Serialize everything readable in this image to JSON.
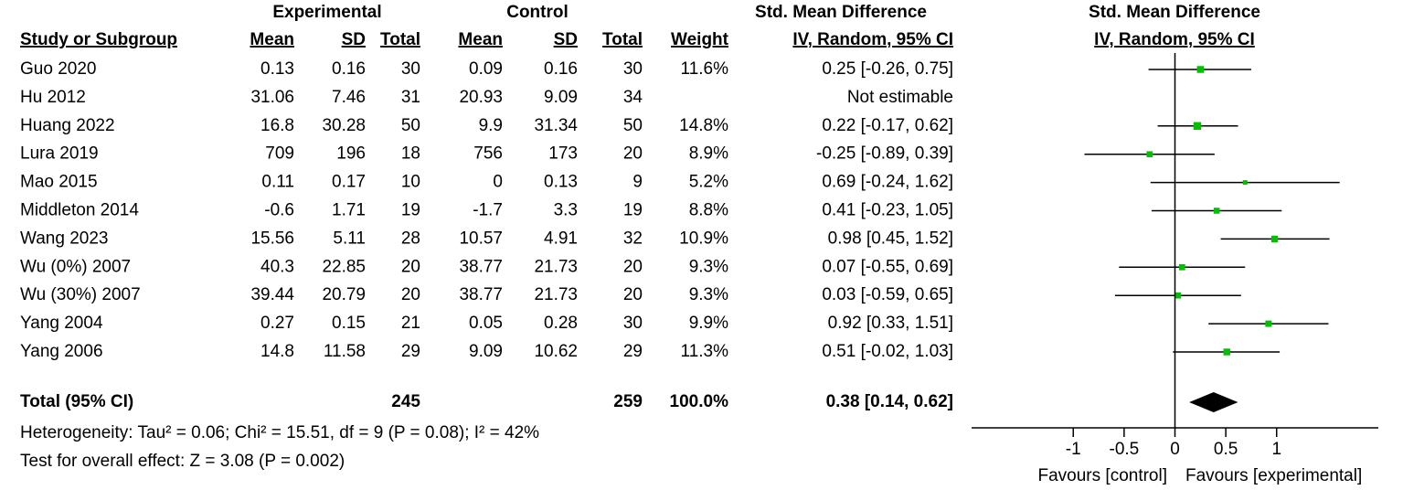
{
  "chart_data": {
    "type": "forest",
    "group_headers": {
      "experimental": "Experimental",
      "control": "Control",
      "table_effect": "Std. Mean Difference",
      "plot_effect": "Std. Mean Difference"
    },
    "columns": [
      "Study or Subgroup",
      "Mean",
      "SD",
      "Total",
      "Mean",
      "SD",
      "Total",
      "Weight",
      "IV, Random, 95% CI"
    ],
    "plot_header": "IV, Random, 95% CI",
    "marker_color": "#00c000",
    "studies": [
      {
        "name": "Guo 2020",
        "exp_mean": 0.13,
        "exp_sd": 0.16,
        "exp_total": 30,
        "ctl_mean": 0.09,
        "ctl_sd": 0.16,
        "ctl_total": 30,
        "weight": 11.6,
        "weight_label": "11.6%",
        "effect": 0.25,
        "lower": -0.26,
        "upper": 0.75,
        "ci_label": "0.25 [-0.26, 0.75]"
      },
      {
        "name": "Hu 2012",
        "exp_mean": 31.06,
        "exp_sd": 7.46,
        "exp_total": 31,
        "ctl_mean": 20.93,
        "ctl_sd": 9.09,
        "ctl_total": 34,
        "weight": null,
        "weight_label": null,
        "effect": null,
        "lower": null,
        "upper": null,
        "ci_label": "Not estimable"
      },
      {
        "name": "Huang 2022",
        "exp_mean": 16.8,
        "exp_sd": 30.28,
        "exp_total": 50,
        "ctl_mean": 9.9,
        "ctl_sd": 31.34,
        "ctl_total": 50,
        "weight": 14.8,
        "weight_label": "14.8%",
        "effect": 0.22,
        "lower": -0.17,
        "upper": 0.62,
        "ci_label": "0.22 [-0.17, 0.62]"
      },
      {
        "name": "Lura 2019",
        "exp_mean": 709,
        "exp_sd": 196,
        "exp_total": 18,
        "ctl_mean": 756,
        "ctl_sd": 173,
        "ctl_total": 20,
        "weight": 8.9,
        "weight_label": "8.9%",
        "effect": -0.25,
        "lower": -0.89,
        "upper": 0.39,
        "ci_label": "-0.25 [-0.89, 0.39]"
      },
      {
        "name": "Mao 2015",
        "exp_mean": 0.11,
        "exp_sd": 0.17,
        "exp_total": 10,
        "ctl_mean": 0,
        "ctl_sd": 0.13,
        "ctl_total": 9,
        "weight": 5.2,
        "weight_label": "5.2%",
        "effect": 0.69,
        "lower": -0.24,
        "upper": 1.62,
        "ci_label": "0.69 [-0.24, 1.62]"
      },
      {
        "name": "Middleton 2014",
        "exp_mean": -0.6,
        "exp_sd": 1.71,
        "exp_total": 19,
        "ctl_mean": -1.7,
        "ctl_sd": 3.3,
        "ctl_total": 19,
        "weight": 8.8,
        "weight_label": "8.8%",
        "effect": 0.41,
        "lower": -0.23,
        "upper": 1.05,
        "ci_label": "0.41 [-0.23, 1.05]"
      },
      {
        "name": "Wang 2023",
        "exp_mean": 15.56,
        "exp_sd": 5.11,
        "exp_total": 28,
        "ctl_mean": 10.57,
        "ctl_sd": 4.91,
        "ctl_total": 32,
        "weight": 10.9,
        "weight_label": "10.9%",
        "effect": 0.98,
        "lower": 0.45,
        "upper": 1.52,
        "ci_label": "0.98 [0.45, 1.52]"
      },
      {
        "name": "Wu (0%) 2007",
        "exp_mean": 40.3,
        "exp_sd": 22.85,
        "exp_total": 20,
        "ctl_mean": 38.77,
        "ctl_sd": 21.73,
        "ctl_total": 20,
        "weight": 9.3,
        "weight_label": "9.3%",
        "effect": 0.07,
        "lower": -0.55,
        "upper": 0.69,
        "ci_label": "0.07 [-0.55, 0.69]"
      },
      {
        "name": "Wu (30%) 2007",
        "exp_mean": 39.44,
        "exp_sd": 20.79,
        "exp_total": 20,
        "ctl_mean": 38.77,
        "ctl_sd": 21.73,
        "ctl_total": 20,
        "weight": 9.3,
        "weight_label": "9.3%",
        "effect": 0.03,
        "lower": -0.59,
        "upper": 0.65,
        "ci_label": "0.03 [-0.59, 0.65]"
      },
      {
        "name": "Yang 2004",
        "exp_mean": 0.27,
        "exp_sd": 0.15,
        "exp_total": 21,
        "ctl_mean": 0.05,
        "ctl_sd": 0.28,
        "ctl_total": 30,
        "weight": 9.9,
        "weight_label": "9.9%",
        "effect": 0.92,
        "lower": 0.33,
        "upper": 1.51,
        "ci_label": "0.92 [0.33, 1.51]"
      },
      {
        "name": "Yang 2006",
        "exp_mean": 14.8,
        "exp_sd": 11.58,
        "exp_total": 29,
        "ctl_mean": 9.09,
        "ctl_sd": 10.62,
        "ctl_total": 29,
        "weight": 11.3,
        "weight_label": "11.3%",
        "effect": 0.51,
        "lower": -0.02,
        "upper": 1.03,
        "ci_label": "0.51 [-0.02, 1.03]"
      }
    ],
    "total": {
      "name": "Total (95% CI)",
      "exp_total": 245,
      "ctl_total": 259,
      "weight": 100,
      "weight_label": "100.0%",
      "effect": 0.38,
      "lower": 0.14,
      "upper": 0.62,
      "ci_label": "0.38 [0.14, 0.62]"
    },
    "heterogeneity": "Heterogeneity: Tau² = 0.06; Chi² = 15.51, df = 9 (P = 0.08); I² = 42%",
    "overall_effect": "Test for overall effect: Z = 3.08 (P = 0.002)",
    "xlim": [
      -2,
      2
    ],
    "xticks": [
      -1,
      -0.5,
      0,
      0.5,
      1
    ],
    "favours_left": "Favours [control]",
    "favours_right": "Favours [experimental]"
  }
}
